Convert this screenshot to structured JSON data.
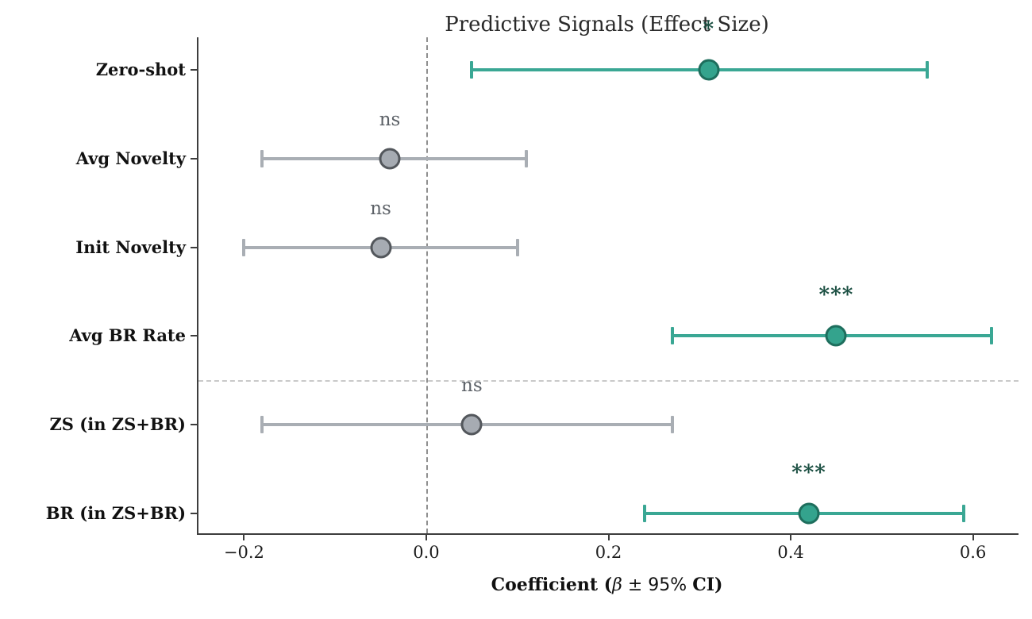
{
  "chart_data": {
    "type": "forest",
    "title": "Predictive Signals (Effect Size)",
    "xlabel": {
      "text": "Coefficient (β ± 95% CI)",
      "prefix": "Coefficient (",
      "beta": "β",
      "pm": " ± ",
      "pct": "95% ",
      "suffix": "CI)"
    },
    "xlim": [
      -0.25,
      0.65
    ],
    "x_ticks": [
      {
        "value": -0.2,
        "label": "−0.2"
      },
      {
        "value": 0.0,
        "label": "0.0"
      },
      {
        "value": 0.2,
        "label": "0.2"
      },
      {
        "value": 0.4,
        "label": "0.4"
      },
      {
        "value": 0.6,
        "label": "0.6"
      }
    ],
    "zero_line_value": 0.0,
    "separator_between_rows": [
      3,
      4
    ],
    "grid": "off",
    "legend": "none",
    "rows": [
      {
        "label": "Zero-shot",
        "beta": 0.31,
        "ci_low": 0.05,
        "ci_high": 0.55,
        "significance": "*",
        "style": "significant"
      },
      {
        "label": "Avg Novelty",
        "beta": -0.04,
        "ci_low": -0.18,
        "ci_high": 0.11,
        "significance": "ns",
        "style": "not-significant"
      },
      {
        "label": "Init Novelty",
        "beta": -0.05,
        "ci_low": -0.2,
        "ci_high": 0.1,
        "significance": "ns",
        "style": "not-significant"
      },
      {
        "label": "Avg BR Rate",
        "beta": 0.45,
        "ci_low": 0.27,
        "ci_high": 0.62,
        "significance": "***",
        "style": "significant"
      },
      {
        "label": "ZS (in ZS+BR)",
        "beta": 0.05,
        "ci_low": -0.18,
        "ci_high": 0.27,
        "significance": "ns",
        "style": "not-significant"
      },
      {
        "label": "BR (in ZS+BR)",
        "beta": 0.42,
        "ci_low": 0.24,
        "ci_high": 0.59,
        "significance": "***",
        "style": "significant"
      }
    ],
    "colors": {
      "significant_line": "#3aa794",
      "significant_fill": "#34a38d",
      "significant_edge": "#1e6e5d",
      "significant_star": "#1b4f42",
      "ns_line": "#a9aeb4",
      "ns_fill": "#a6abb2",
      "ns_edge": "#53575c",
      "ns_text": "#5c6167",
      "zero_line": "#8f8f8f",
      "separator": "#c9c9c9",
      "spine": "#3d3d3d",
      "background": "#ffffff"
    }
  }
}
